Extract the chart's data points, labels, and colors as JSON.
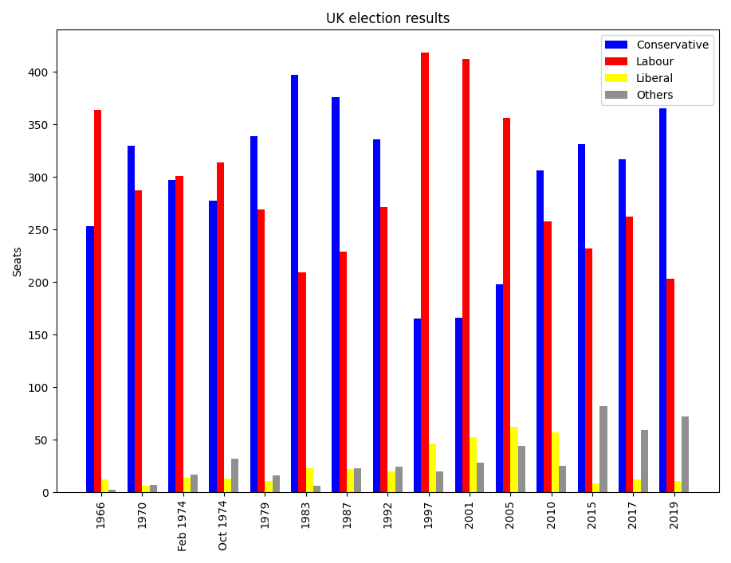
{
  "title": "UK election results",
  "ylabel": "Seats",
  "years": [
    "1966",
    "1970",
    "Feb 1974",
    "Oct 1974",
    "1979",
    "1983",
    "1987",
    "1992",
    "1997",
    "2001",
    "2005",
    "2010",
    "2015",
    "2017",
    "2019"
  ],
  "conservative": [
    253,
    330,
    297,
    277,
    339,
    397,
    376,
    336,
    165,
    166,
    198,
    306,
    331,
    317,
    365
  ],
  "labour": [
    364,
    287,
    301,
    314,
    269,
    209,
    229,
    271,
    418,
    412,
    356,
    258,
    232,
    262,
    203
  ],
  "liberal": [
    12,
    6,
    14,
    13,
    11,
    23,
    22,
    20,
    46,
    52,
    62,
    57,
    8,
    12,
    11
  ],
  "others": [
    2,
    7,
    17,
    32,
    16,
    6,
    23,
    24,
    20,
    28,
    44,
    25,
    82,
    59,
    72
  ],
  "bar_colors": {
    "conservative": "#0000ff",
    "labour": "#ff0000",
    "liberal": "#ffff00",
    "others": "#909090"
  },
  "legend_labels": [
    "Conservative",
    "Labour",
    "Liberal",
    "Others"
  ],
  "ylim": [
    0,
    440
  ],
  "background_color": "#ffffff"
}
